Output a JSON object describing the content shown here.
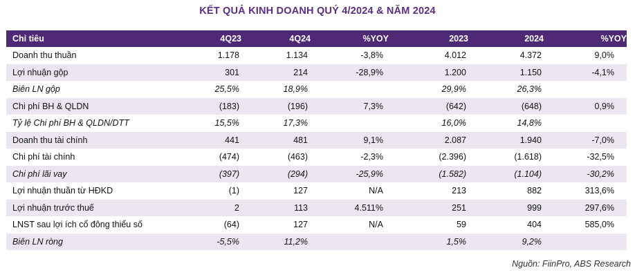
{
  "title": "KẾT QUẢ KINH DOANH QUÝ 4/2024 & NĂM 2024",
  "headers": [
    "Chỉ tiêu",
    "4Q23",
    "4Q24",
    "%YOY",
    "2023",
    "2024",
    "%YOY"
  ],
  "rows": [
    {
      "label": "Doanh thu thuần",
      "italic": false,
      "values": [
        "1.178",
        "1.134",
        "-3,8%",
        "4.012",
        "4.372",
        "9,0%"
      ]
    },
    {
      "label": "Lợi nhuận gộp",
      "italic": false,
      "values": [
        "301",
        "214",
        "-28,9%",
        "1.200",
        "1.150",
        "-4,1%"
      ]
    },
    {
      "label": "Biên LN gộp",
      "italic": true,
      "values": [
        "25,5%",
        "18,9%",
        "",
        "29,9%",
        "26,3%",
        ""
      ]
    },
    {
      "label": "Chi phí BH & QLDN",
      "italic": false,
      "values": [
        "(183)",
        "(196)",
        "7,3%",
        "(642)",
        "(648)",
        "0,9%"
      ]
    },
    {
      "label": "Tỷ lệ Chi phí BH & QLDN/DTT",
      "italic": true,
      "values": [
        "15,5%",
        "17,3%",
        "",
        "16,0%",
        "14,8%",
        ""
      ]
    },
    {
      "label": "Doanh thu tài chính",
      "italic": false,
      "values": [
        "441",
        "481",
        "9,1%",
        "2.087",
        "1.940",
        "-7,0%"
      ]
    },
    {
      "label": "Chi phí tài chính",
      "italic": false,
      "values": [
        "(474)",
        "(463)",
        "-2,3%",
        "(2.396)",
        "(1.618)",
        "-32,5%"
      ]
    },
    {
      "label": "Chi phí lãi vay",
      "italic": true,
      "values": [
        "(397)",
        "(294)",
        "-25,9%",
        "(1.582)",
        "(1.104)",
        "-30,2%"
      ]
    },
    {
      "label": "Lợi nhuận thuần từ HĐKD",
      "italic": false,
      "values": [
        "(1)",
        "127",
        "N/A",
        "213",
        "882",
        "313,6%"
      ]
    },
    {
      "label": "Lợi nhuận trước thuế",
      "italic": false,
      "values": [
        "2",
        "113",
        "4.511%",
        "251",
        "999",
        "297,6%"
      ]
    },
    {
      "label": "LNST sau lợi ích cổ đông thiểu số",
      "italic": false,
      "values": [
        "(64)",
        "127",
        "N/A",
        "59",
        "404",
        "585,0%"
      ]
    },
    {
      "label": "Biên LN ròng",
      "italic": true,
      "values": [
        "-5,5%",
        "11,2%",
        "",
        "1,5%",
        "9,2%",
        ""
      ]
    }
  ],
  "source": "Nguồn: FiinPro, ABS Research"
}
